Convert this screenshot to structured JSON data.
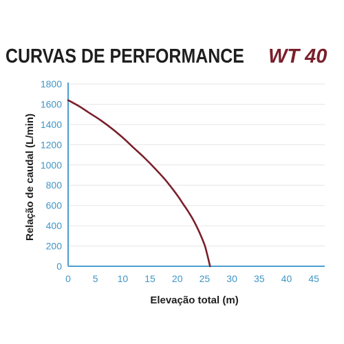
{
  "title": "CURVAS DE PERFORMANCE",
  "model": "WT 40",
  "colors": {
    "curve": "#7a1f2b",
    "axis": "#4a9fd0",
    "grid": "#e6e6e6",
    "tick_text": "#3f95c6",
    "title_text": "#1e1e1e"
  },
  "chart_data": {
    "type": "line",
    "xlabel": "Elevação total (m)",
    "ylabel": "Relação de caudal (L/min)",
    "xlim": [
      0,
      47
    ],
    "ylim": [
      0,
      1800
    ],
    "x_ticks": [
      "0",
      "5",
      "10",
      "15",
      "20",
      "25",
      "30",
      "35",
      "40",
      "45"
    ],
    "y_ticks": [
      "0",
      "200",
      "400",
      "600",
      "800",
      "1000",
      "1200",
      "1400",
      "1600",
      "1800"
    ],
    "grid": true,
    "series": [
      {
        "x": [
          0,
          2,
          4,
          6,
          8,
          10,
          12,
          14,
          16,
          18,
          20,
          21,
          22,
          23,
          24,
          25,
          25.5,
          26
        ],
        "y": [
          1640,
          1580,
          1510,
          1440,
          1360,
          1270,
          1170,
          1070,
          960,
          840,
          700,
          620,
          540,
          450,
          340,
          210,
          110,
          0
        ]
      }
    ]
  }
}
